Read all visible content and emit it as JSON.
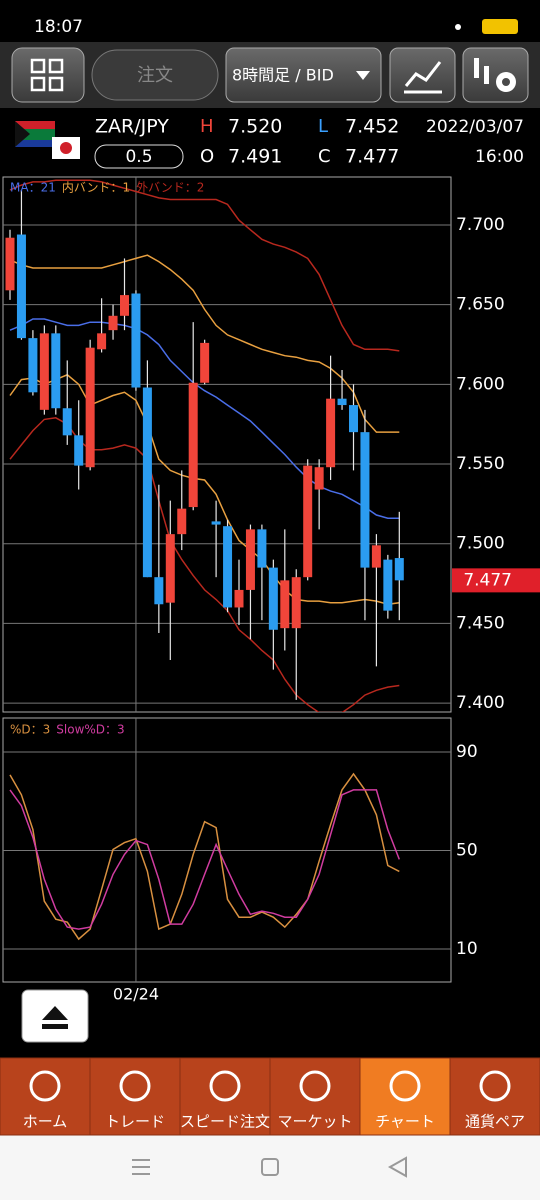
{
  "status_bar": {
    "time": "18:07"
  },
  "toolbar": {
    "order_button": "注文",
    "timeframe": "8時間足 / BID"
  },
  "quote": {
    "symbol": "ZAR/JPY",
    "spread": "0.5",
    "high_label": "H",
    "high": "7.520",
    "low_label": "L",
    "low": "7.452",
    "open_label": "O",
    "open": "7.491",
    "close_label": "C",
    "close": "7.477",
    "date": "2022/03/07",
    "time": "16:00"
  },
  "chart_data": [
    {
      "type": "candlestick",
      "categories": [
        null,
        null,
        null,
        null,
        null,
        null,
        null,
        null,
        null,
        null,
        null,
        "02/24",
        null,
        null,
        null,
        null,
        null,
        null,
        null,
        null,
        null,
        null,
        null,
        null,
        null,
        null,
        null,
        null,
        null,
        null,
        null,
        null,
        null,
        null,
        null
      ],
      "open": [
        7.659,
        7.694,
        7.629,
        7.584,
        7.632,
        7.585,
        7.568,
        7.548,
        7.622,
        7.634,
        7.643,
        7.657,
        7.598,
        7.479,
        7.463,
        7.506,
        7.523,
        7.601,
        7.514,
        7.511,
        7.46,
        7.471,
        7.509,
        7.485,
        7.447,
        7.447,
        7.479,
        7.534,
        7.548,
        7.591,
        7.587,
        7.57,
        7.485,
        7.49,
        7.491
      ],
      "high": [
        7.697,
        7.722,
        7.634,
        7.637,
        7.637,
        7.615,
        7.59,
        7.628,
        7.654,
        7.65,
        7.679,
        7.659,
        7.615,
        7.537,
        7.527,
        7.546,
        7.639,
        7.628,
        7.527,
        7.515,
        7.49,
        7.512,
        7.512,
        7.49,
        7.509,
        7.484,
        7.553,
        7.553,
        7.618,
        7.609,
        7.6,
        7.584,
        7.506,
        7.493,
        7.52
      ],
      "low": [
        7.653,
        7.628,
        7.593,
        7.581,
        7.581,
        7.562,
        7.534,
        7.546,
        7.62,
        7.628,
        7.634,
        7.596,
        7.479,
        7.444,
        7.427,
        7.496,
        7.521,
        7.6,
        7.479,
        7.457,
        7.449,
        7.44,
        7.452,
        7.421,
        7.433,
        7.402,
        7.477,
        7.509,
        7.54,
        7.584,
        7.546,
        7.452,
        7.423,
        7.453,
        7.452
      ],
      "close": [
        7.692,
        7.629,
        7.595,
        7.632,
        7.585,
        7.568,
        7.549,
        7.623,
        7.632,
        7.643,
        7.656,
        7.598,
        7.479,
        7.462,
        7.506,
        7.522,
        7.601,
        7.626,
        7.512,
        7.46,
        7.471,
        7.509,
        7.485,
        7.446,
        7.477,
        7.479,
        7.549,
        7.548,
        7.591,
        7.587,
        7.57,
        7.485,
        7.499,
        7.458,
        7.477
      ],
      "up_color": "#f0453a",
      "down_color": "#2b9cf0",
      "series": [
        {
          "name": "MA：21",
          "color": "#4a6ee8",
          "values": [
            7.634,
            7.637,
            7.641,
            7.641,
            7.639,
            7.637,
            7.637,
            7.639,
            7.639,
            7.638,
            7.637,
            7.635,
            7.631,
            7.625,
            7.615,
            7.608,
            7.601,
            7.596,
            7.592,
            7.587,
            7.582,
            7.577,
            7.57,
            7.563,
            7.556,
            7.548,
            7.541,
            7.536,
            7.533,
            7.531,
            7.527,
            7.523,
            7.518,
            7.516,
            7.516
          ]
        },
        {
          "name": "内バンド：1",
          "color": "#e8a040",
          "upper": [
            7.678,
            7.675,
            7.673,
            7.673,
            7.673,
            7.673,
            7.673,
            7.673,
            7.673,
            7.675,
            7.677,
            7.679,
            7.681,
            7.677,
            7.672,
            7.666,
            7.659,
            7.647,
            7.637,
            7.631,
            7.628,
            7.625,
            7.622,
            7.62,
            7.618,
            7.617,
            7.615,
            7.614,
            7.61,
            7.604,
            7.595,
            7.578,
            7.57,
            7.57,
            7.57
          ],
          "lower": [
            7.593,
            7.603,
            7.604,
            7.6,
            7.603,
            7.606,
            7.6,
            7.587,
            7.59,
            7.593,
            7.595,
            7.59,
            7.575,
            7.553,
            7.546,
            7.543,
            7.541,
            7.54,
            7.531,
            7.515,
            7.502,
            7.496,
            7.49,
            7.48,
            7.471,
            7.465,
            7.464,
            7.464,
            7.463,
            7.463,
            7.464,
            7.465,
            7.464,
            7.462,
            7.463
          ]
        },
        {
          "name": "外バンド：2",
          "color": "#b8281e",
          "upper": [
            7.722,
            7.725,
            7.727,
            7.727,
            7.728,
            7.728,
            7.728,
            7.728,
            7.727,
            7.725,
            7.723,
            7.721,
            7.719,
            7.717,
            7.716,
            7.716,
            7.716,
            7.716,
            7.716,
            7.713,
            7.703,
            7.697,
            7.691,
            7.688,
            7.686,
            7.683,
            7.679,
            7.669,
            7.653,
            7.637,
            7.625,
            7.622,
            7.622,
            7.622,
            7.621
          ],
          "lower": [
            7.553,
            7.562,
            7.571,
            7.578,
            7.579,
            7.575,
            7.565,
            7.559,
            7.559,
            7.56,
            7.562,
            7.56,
            7.553,
            7.527,
            7.502,
            7.49,
            7.48,
            7.471,
            7.465,
            7.458,
            7.446,
            7.44,
            7.433,
            7.427,
            7.415,
            7.405,
            7.399,
            7.394,
            7.394,
            7.394,
            7.399,
            7.405,
            7.408,
            7.41,
            7.411
          ]
        }
      ],
      "ylim": [
        7.3944,
        7.7301
      ],
      "yticks": [
        {
          "value": 7.7,
          "label": "7.700"
        },
        {
          "value": 7.65,
          "label": "7.650"
        },
        {
          "value": 7.6,
          "label": "7.600"
        },
        {
          "value": 7.55,
          "label": "7.550"
        },
        {
          "value": 7.5,
          "label": "7.500"
        },
        {
          "value": 7.45,
          "label": "7.450"
        },
        {
          "value": 7.4,
          "label": "7.400"
        }
      ],
      "current_price": 7.477,
      "grid": true
    },
    {
      "type": "line",
      "series": [
        {
          "name": "%D：3",
          "color": "#d89040",
          "values": [
            80.7,
            72.6,
            58.5,
            29.4,
            22.1,
            20.9,
            14.0,
            18.1,
            34.2,
            50.4,
            53.2,
            54.8,
            41.5,
            18.1,
            20.1,
            32.2,
            48.4,
            61.7,
            59.3,
            30.2,
            22.9,
            22.9,
            25.0,
            22.9,
            18.9,
            24.1,
            30.2,
            45.6,
            60.5,
            74.6,
            81.1,
            74.6,
            64.5,
            43.9,
            41.5
          ]
        },
        {
          "name": "Slow%D：3",
          "color": "#d03ca0",
          "values": [
            74.6,
            68.2,
            55.3,
            38.3,
            26.2,
            18.9,
            18.1,
            18.9,
            28.2,
            40.3,
            48.4,
            54.0,
            52.4,
            38.3,
            20.1,
            20.1,
            28.2,
            40.3,
            52.4,
            42.3,
            32.2,
            24.1,
            25.4,
            24.5,
            22.9,
            22.9,
            30.2,
            40.3,
            56.5,
            72.6,
            74.6,
            74.6,
            74.6,
            58.5,
            46.4
          ]
        }
      ],
      "ylim": [
        -3.4,
        103.8
      ],
      "yticks": [
        10,
        50,
        90
      ],
      "grid": true
    }
  ],
  "bottom_nav": {
    "tabs": [
      "ホーム",
      "トレード",
      "スピード注文",
      "マーケット",
      "チャート",
      "通貨ペア"
    ],
    "active": 4
  }
}
